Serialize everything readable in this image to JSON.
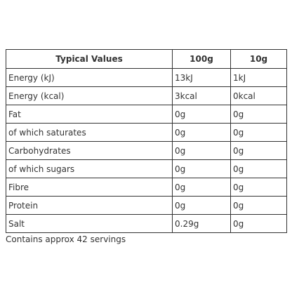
{
  "table": {
    "header": [
      "Typical Values",
      "100g",
      "10g"
    ],
    "rows": [
      [
        "Energy (kJ)",
        "13kJ",
        "1kJ"
      ],
      [
        "Energy (kcal)",
        "3kcal",
        "0kcal"
      ],
      [
        "Fat",
        "0g",
        "0g"
      ],
      [
        "of which saturates",
        "0g",
        "0g"
      ],
      [
        "Carbohydrates",
        "0g",
        "0g"
      ],
      [
        "of which sugars",
        "0g",
        "0g"
      ],
      [
        "Fibre",
        "0g",
        "0g"
      ],
      [
        "Protein",
        "0g",
        "0g"
      ],
      [
        "Salt",
        "0.29g",
        "0g"
      ]
    ],
    "note": "Contains approx 42 servings"
  }
}
